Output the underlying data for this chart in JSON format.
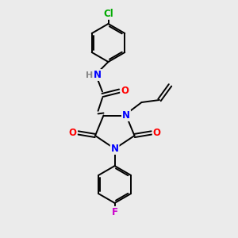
{
  "background_color": "#ebebeb",
  "bond_color": "#000000",
  "atom_colors": {
    "N": "#0000ff",
    "O": "#ff0000",
    "Cl": "#00aa00",
    "F": "#cc00cc",
    "H": "#888888",
    "C": "#000000"
  },
  "figsize": [
    3.0,
    3.0
  ],
  "dpi": 100,
  "lw": 1.4,
  "fontsize": 8.5
}
